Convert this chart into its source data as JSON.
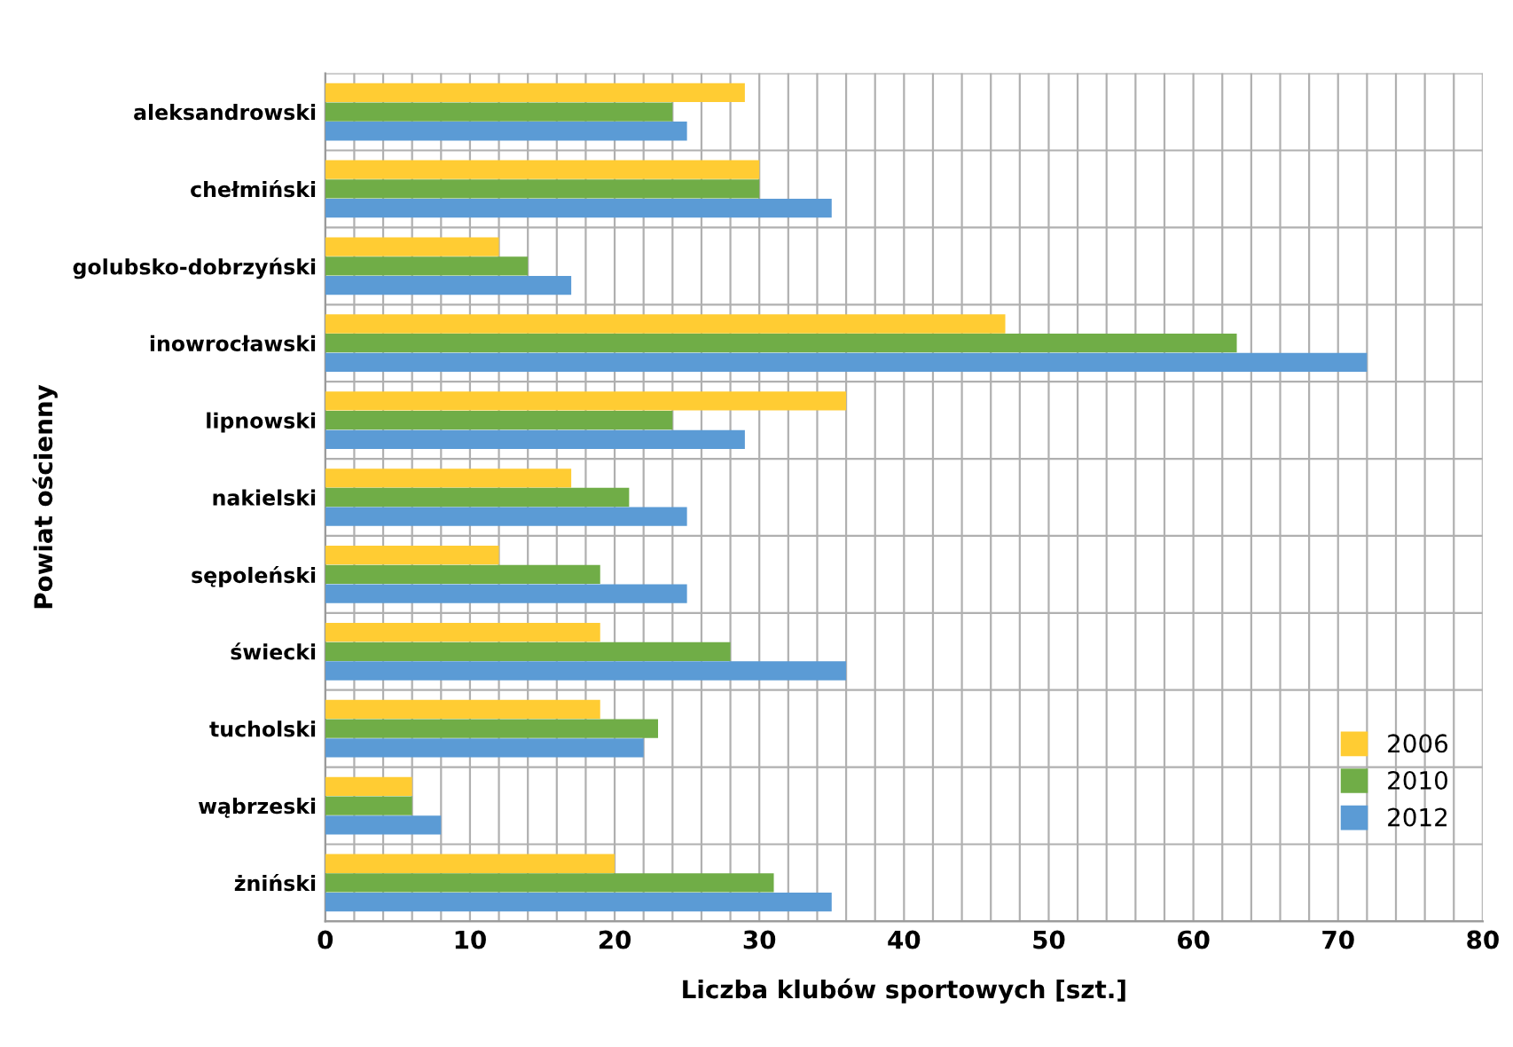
{
  "chart_data": {
    "type": "bar",
    "orientation": "horizontal",
    "xlabel": "Liczba klubów sportowych [szt.]",
    "ylabel": "Powiat ościenny",
    "categories": [
      "aleksandrowski",
      "chełmiński",
      "golubsko-dobrzyński",
      "inowrocławski",
      "lipnowski",
      "nakielski",
      "sępoleński",
      "świecki",
      "tucholski",
      "wąbrzeski",
      "żniński"
    ],
    "series": [
      {
        "name": "2006",
        "color": "#ffcc33",
        "values": [
          29,
          30,
          12,
          47,
          36,
          17,
          12,
          19,
          19,
          6,
          20
        ]
      },
      {
        "name": "2010",
        "color": "#70ad47",
        "values": [
          24,
          30,
          14,
          63,
          24,
          21,
          19,
          28,
          23,
          6,
          31
        ]
      },
      {
        "name": "2012",
        "color": "#5b9bd5",
        "values": [
          25,
          35,
          17,
          72,
          29,
          25,
          25,
          36,
          22,
          8,
          35
        ]
      }
    ],
    "xlim": [
      0,
      80
    ],
    "xticks": [
      0,
      {
        "value": 2,
        "label": null
      },
      {
        "value": 4,
        "label": null
      },
      {
        "value": 6,
        "label": null
      },
      {
        "value": 8,
        "label": null
      },
      10,
      {
        "value": 12,
        "label": null
      },
      {
        "value": 14,
        "label": null
      },
      {
        "value": 16,
        "label": null
      },
      {
        "value": 18,
        "label": null
      },
      20,
      {
        "value": 22,
        "label": null
      },
      {
        "value": 24,
        "label": null
      },
      {
        "value": 26,
        "label": null
      },
      {
        "value": 28,
        "label": null
      },
      30,
      {
        "value": 32,
        "label": null
      },
      {
        "value": 34,
        "label": null
      },
      {
        "value": 36,
        "label": null
      },
      {
        "value": 38,
        "label": null
      },
      40,
      {
        "value": 42,
        "label": null
      },
      {
        "value": 44,
        "label": null
      },
      {
        "value": 46,
        "label": null
      },
      {
        "value": 48,
        "label": null
      },
      50,
      {
        "value": 52,
        "label": null
      },
      {
        "value": 54,
        "label": null
      },
      {
        "value": 56,
        "label": null
      },
      {
        "value": 58,
        "label": null
      },
      60,
      {
        "value": 62,
        "label": null
      },
      {
        "value": 64,
        "label": null
      },
      {
        "value": 66,
        "label": null
      },
      {
        "value": 68,
        "label": null
      },
      70,
      {
        "value": 72,
        "label": null
      },
      {
        "value": 74,
        "label": null
      },
      {
        "value": 76,
        "label": null
      },
      {
        "value": 78,
        "label": null
      },
      80
    ],
    "grid": true,
    "legend": "bottom right"
  }
}
